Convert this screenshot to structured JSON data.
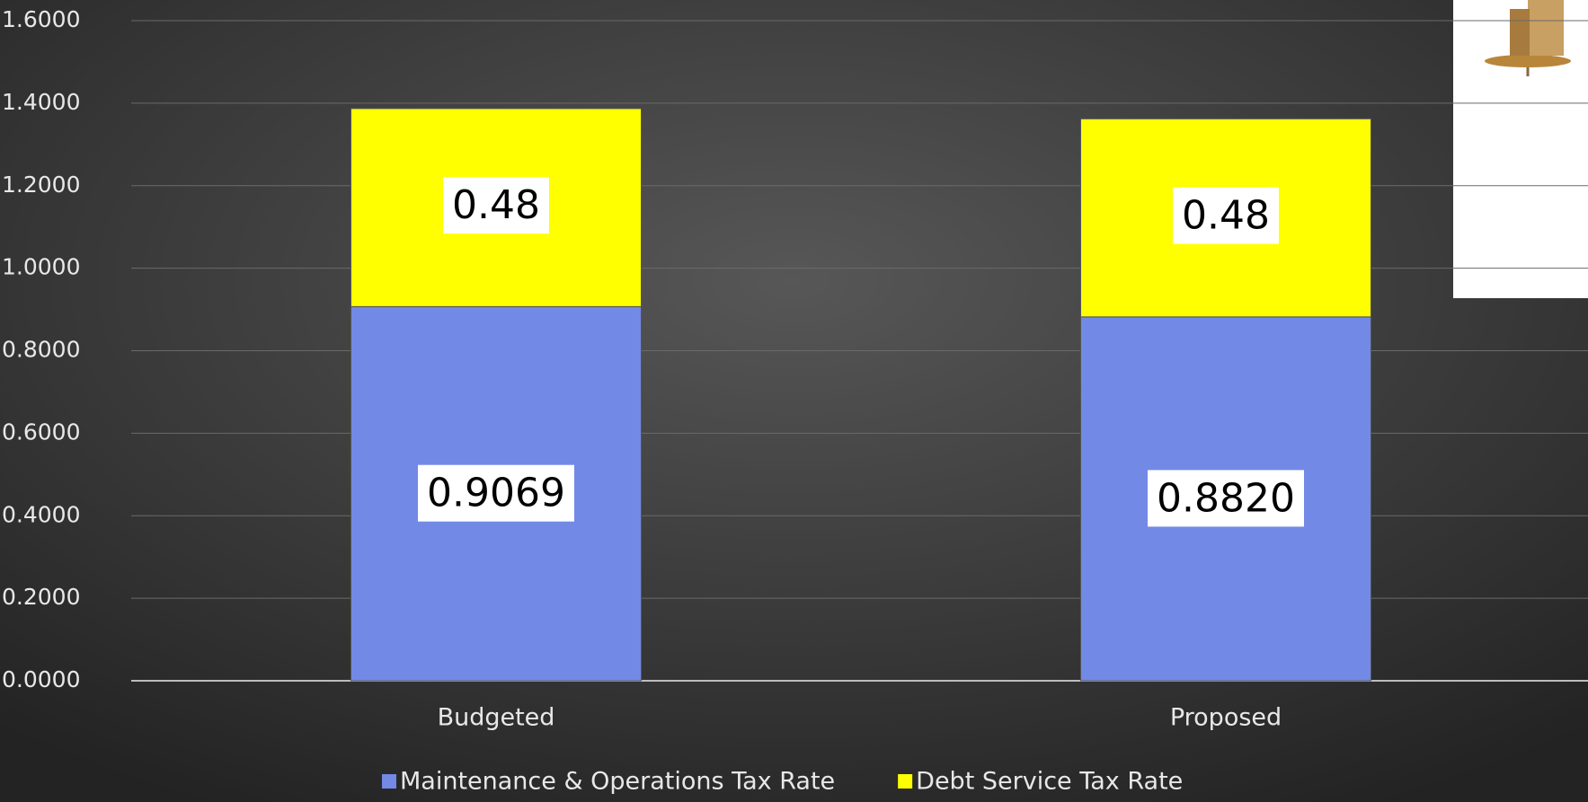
{
  "chart_data": {
    "type": "stacked_bar",
    "categories": [
      "Budgeted",
      "Proposed"
    ],
    "series": [
      {
        "name": "Maintenance & Operations Tax Rate",
        "color": "#7289e6",
        "values": [
          0.9069,
          0.882
        ],
        "value_labels": [
          "0.9069",
          "0.8820"
        ]
      },
      {
        "name": "Debt Service Tax Rate",
        "color": "#ffff00",
        "values": [
          0.48,
          0.48
        ]
      }
    ],
    "ylim": [
      0,
      1.6
    ],
    "yticks": [
      {
        "value": 0,
        "label": "0.0000"
      },
      {
        "value": 0.2,
        "label": "0.2000"
      },
      {
        "value": 0.4,
        "label": "0.4000"
      },
      {
        "value": 0.6,
        "label": "0.6000"
      },
      {
        "value": 0.8,
        "label": "0.8000"
      },
      {
        "value": 1.0,
        "label": "1.0000"
      },
      {
        "value": 1.2,
        "label": "1.2000"
      },
      {
        "value": 1.4,
        "label": "1.4000"
      },
      {
        "value": 1.6,
        "label": "1.6000"
      }
    ],
    "grid": true
  }
}
